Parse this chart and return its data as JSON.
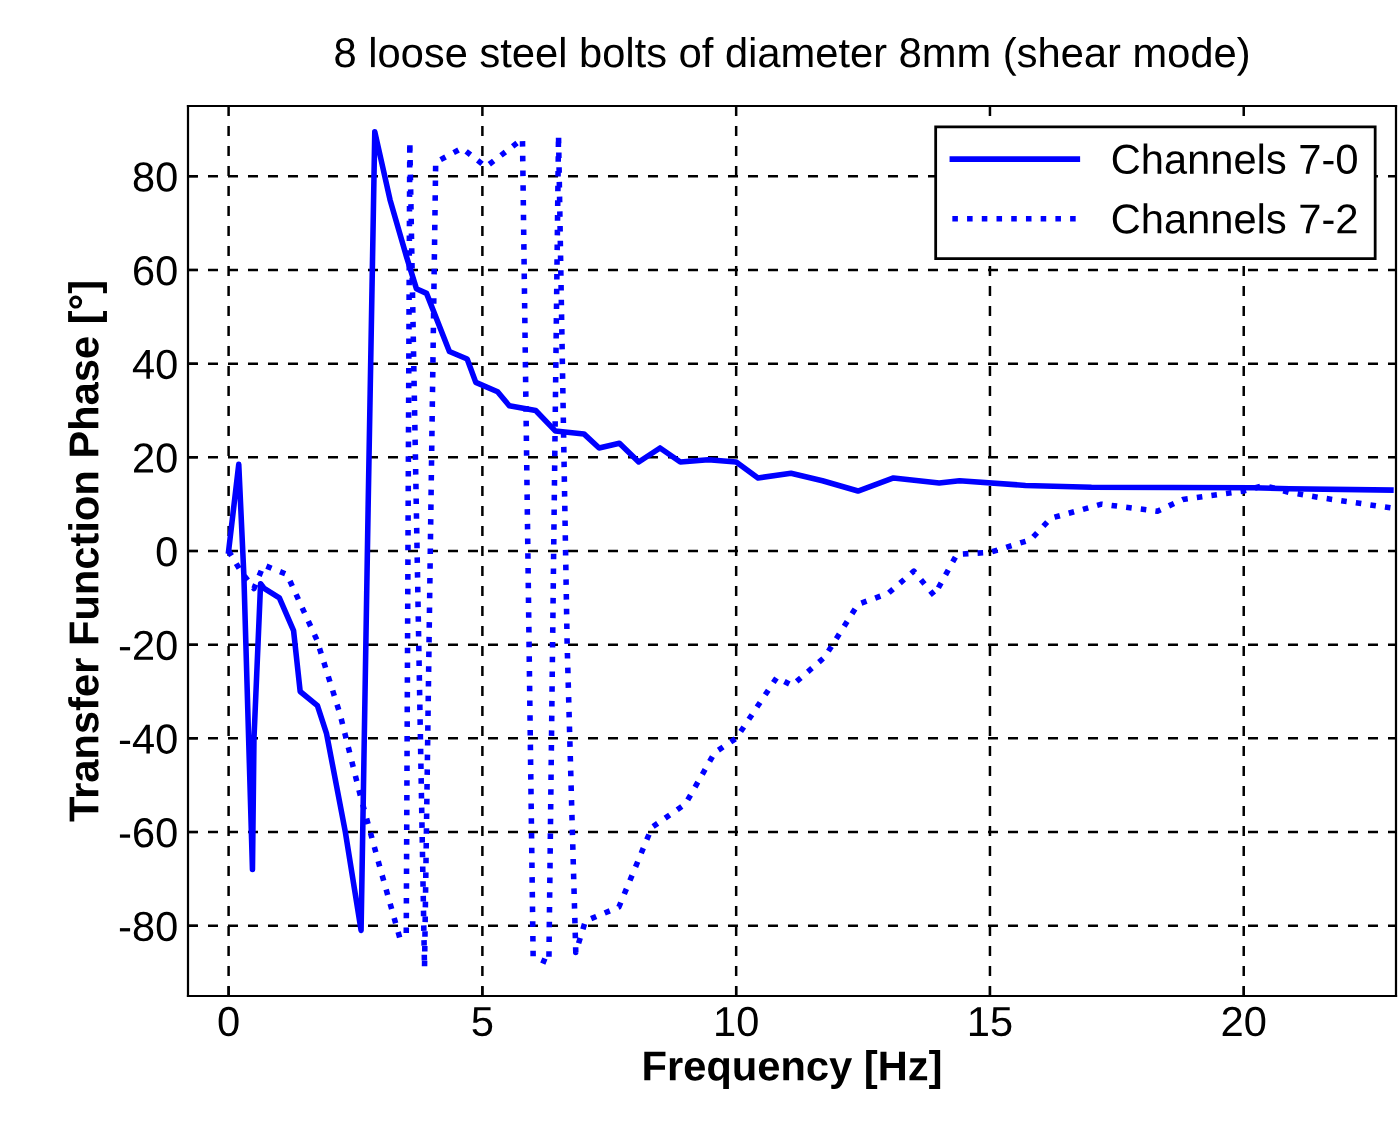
{
  "chart_data": {
    "type": "line",
    "title": "8 loose steel bolts of diameter 8mm (shear mode)",
    "xlabel": "Frequency [Hz]",
    "ylabel": "Transfer Function Phase [°]",
    "xlim": [
      -0.8,
      23
    ],
    "ylim": [
      -95,
      95
    ],
    "xticks": [
      0,
      5,
      10,
      15,
      20
    ],
    "yticks": [
      -80,
      -60,
      -40,
      -20,
      0,
      20,
      40,
      60,
      80
    ],
    "grid": true,
    "legend": "top right",
    "series": [
      {
        "name": "Channels 7-0",
        "color": "#0000ff",
        "line_style": "solid",
        "x": [
          0,
          0.2,
          0.3,
          0.47,
          0.5,
          0.63,
          0.7,
          1.0,
          1.28,
          1.41,
          1.75,
          1.93,
          2.3,
          2.61,
          2.75,
          2.88,
          3.18,
          3.5,
          3.7,
          3.9,
          4.35,
          4.7,
          4.87,
          5.3,
          5.53,
          6.05,
          6.44,
          7.0,
          7.3,
          7.7,
          8.08,
          8.5,
          8.9,
          9.45,
          10.0,
          10.43,
          11.08,
          11.7,
          12.4,
          13.1,
          14.0,
          14.4,
          15.7,
          17.0,
          20.2,
          20.9,
          22.9
        ],
        "values": [
          0,
          18.5,
          -5,
          -68,
          -40,
          -7,
          -8,
          -10,
          -17,
          -30,
          -33,
          -39,
          -60,
          -81,
          10,
          89.5,
          75,
          63,
          56,
          55,
          42.6,
          41,
          36,
          34,
          31,
          30,
          25.6,
          25,
          22,
          23,
          19,
          22,
          19,
          19.5,
          19,
          15.6,
          16.6,
          15,
          12.8,
          15.6,
          14.5,
          15,
          14,
          13.6,
          13.5,
          13.3,
          13
        ]
      },
      {
        "name": "Channels 7-2",
        "color": "#0000ff",
        "line_style": "dotted",
        "x": [
          0,
          0.24,
          0.5,
          0.69,
          1.15,
          1.74,
          2.2,
          2.59,
          2.98,
          3.37,
          3.5,
          3.57,
          3.86,
          4.08,
          4.6,
          5.07,
          5.79,
          6.0,
          6.31,
          6.5,
          6.67,
          6.84,
          7.03,
          7.69,
          8.34,
          9.0,
          9.58,
          10.0,
          10.43,
          10.8,
          11.1,
          11.74,
          12.4,
          13.0,
          13.5,
          13.9,
          14.35,
          15.0,
          15.8,
          16.2,
          17.2,
          18.3,
          18.8,
          20.0,
          20.4,
          20.9,
          21.5,
          22.9
        ],
        "values": [
          0,
          -4.3,
          -8,
          -3,
          -5,
          -19,
          -35,
          -52,
          -67.5,
          -82.5,
          -82,
          87.4,
          -89,
          83,
          86,
          82,
          88,
          -86.6,
          -88,
          88.8,
          -20,
          -85.7,
          -79,
          -76,
          -59,
          -54,
          -43,
          -40,
          -33,
          -27,
          -28.7,
          -22.7,
          -11.4,
          -9,
          -4.3,
          -9.5,
          -0.7,
          -0.3,
          2.4,
          7,
          10,
          8.5,
          11,
          12.8,
          14,
          12.5,
          11.4,
          9.2
        ]
      }
    ]
  }
}
